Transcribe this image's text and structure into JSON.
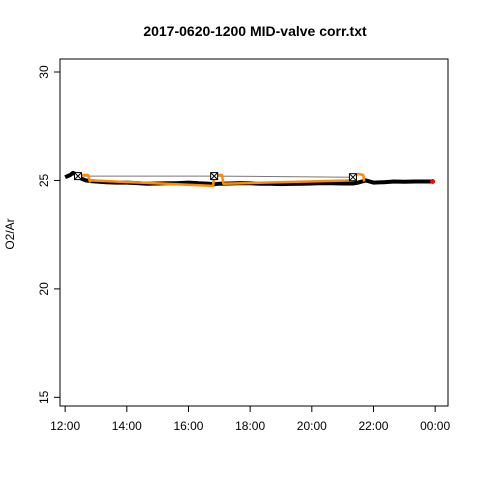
{
  "chart_data": {
    "type": "line",
    "title": "2017-0620-1200 MID-valve corr.txt",
    "xlabel": "",
    "ylabel": "O2/Ar",
    "xlim": [
      "11:50",
      "00:25"
    ],
    "ylim": [
      14.6,
      30.6
    ],
    "x_ticks": [
      "12:00",
      "14:00",
      "16:00",
      "18:00",
      "20:00",
      "22:00",
      "00:00"
    ],
    "y_ticks": [
      15,
      20,
      25,
      30
    ],
    "grid": false,
    "colors": {
      "main": "#000000",
      "reference": "#777777",
      "valve": "#ff8c00",
      "end_point": "#ff0000"
    },
    "series": [
      {
        "x": [
          "12:00",
          "12:10",
          "12:15",
          "12:20",
          "12:25",
          "12:30",
          "12:40",
          "12:50",
          "13:00",
          "13:20",
          "13:40",
          "14:00",
          "14:20",
          "14:40",
          "15:00",
          "15:20",
          "15:40",
          "16:00",
          "16:20",
          "16:40",
          "16:48",
          "17:00",
          "17:20",
          "17:40",
          "18:00",
          "18:20",
          "18:40",
          "19:00",
          "19:20",
          "19:40",
          "20:00",
          "20:20",
          "20:40",
          "21:00",
          "21:20",
          "21:30",
          "21:45",
          "22:00",
          "22:20",
          "22:40",
          "23:00",
          "23:20",
          "23:40",
          "23:55"
        ],
        "values": [
          25.15,
          25.25,
          25.35,
          25.3,
          25.2,
          25.1,
          25.0,
          24.97,
          24.95,
          24.92,
          24.9,
          24.9,
          24.88,
          24.85,
          24.86,
          24.87,
          24.88,
          24.9,
          24.87,
          24.85,
          24.82,
          24.85,
          24.86,
          24.88,
          24.87,
          24.85,
          24.85,
          24.83,
          24.84,
          24.85,
          24.86,
          24.88,
          24.87,
          24.86,
          24.86,
          24.9,
          25.0,
          24.9,
          24.92,
          24.95,
          24.94,
          24.95,
          24.95,
          24.95
        ]
      },
      {
        "x": [
          "12:25",
          "16:50",
          "21:20"
        ],
        "values": [
          25.2,
          25.2,
          25.15
        ]
      },
      {
        "x": [
          "12:25",
          "12:45",
          "12:48",
          "12:50",
          "16:48",
          "16:50",
          "16:55",
          "17:05",
          "17:08",
          "21:20",
          "21:22",
          "21:30",
          "21:40",
          "21:42"
        ],
        "values": [
          25.25,
          25.25,
          24.95,
          25.0,
          24.75,
          25.2,
          25.25,
          25.25,
          24.85,
          25.0,
          25.2,
          25.3,
          25.25,
          24.95
        ]
      }
    ],
    "markers": {
      "valve_boxes": [
        {
          "x": "12:25",
          "y": 25.2
        },
        {
          "x": "16:50",
          "y": 25.2
        },
        {
          "x": "21:20",
          "y": 25.15
        }
      ],
      "end_point": {
        "x": "23:55",
        "y": 24.95
      }
    }
  }
}
